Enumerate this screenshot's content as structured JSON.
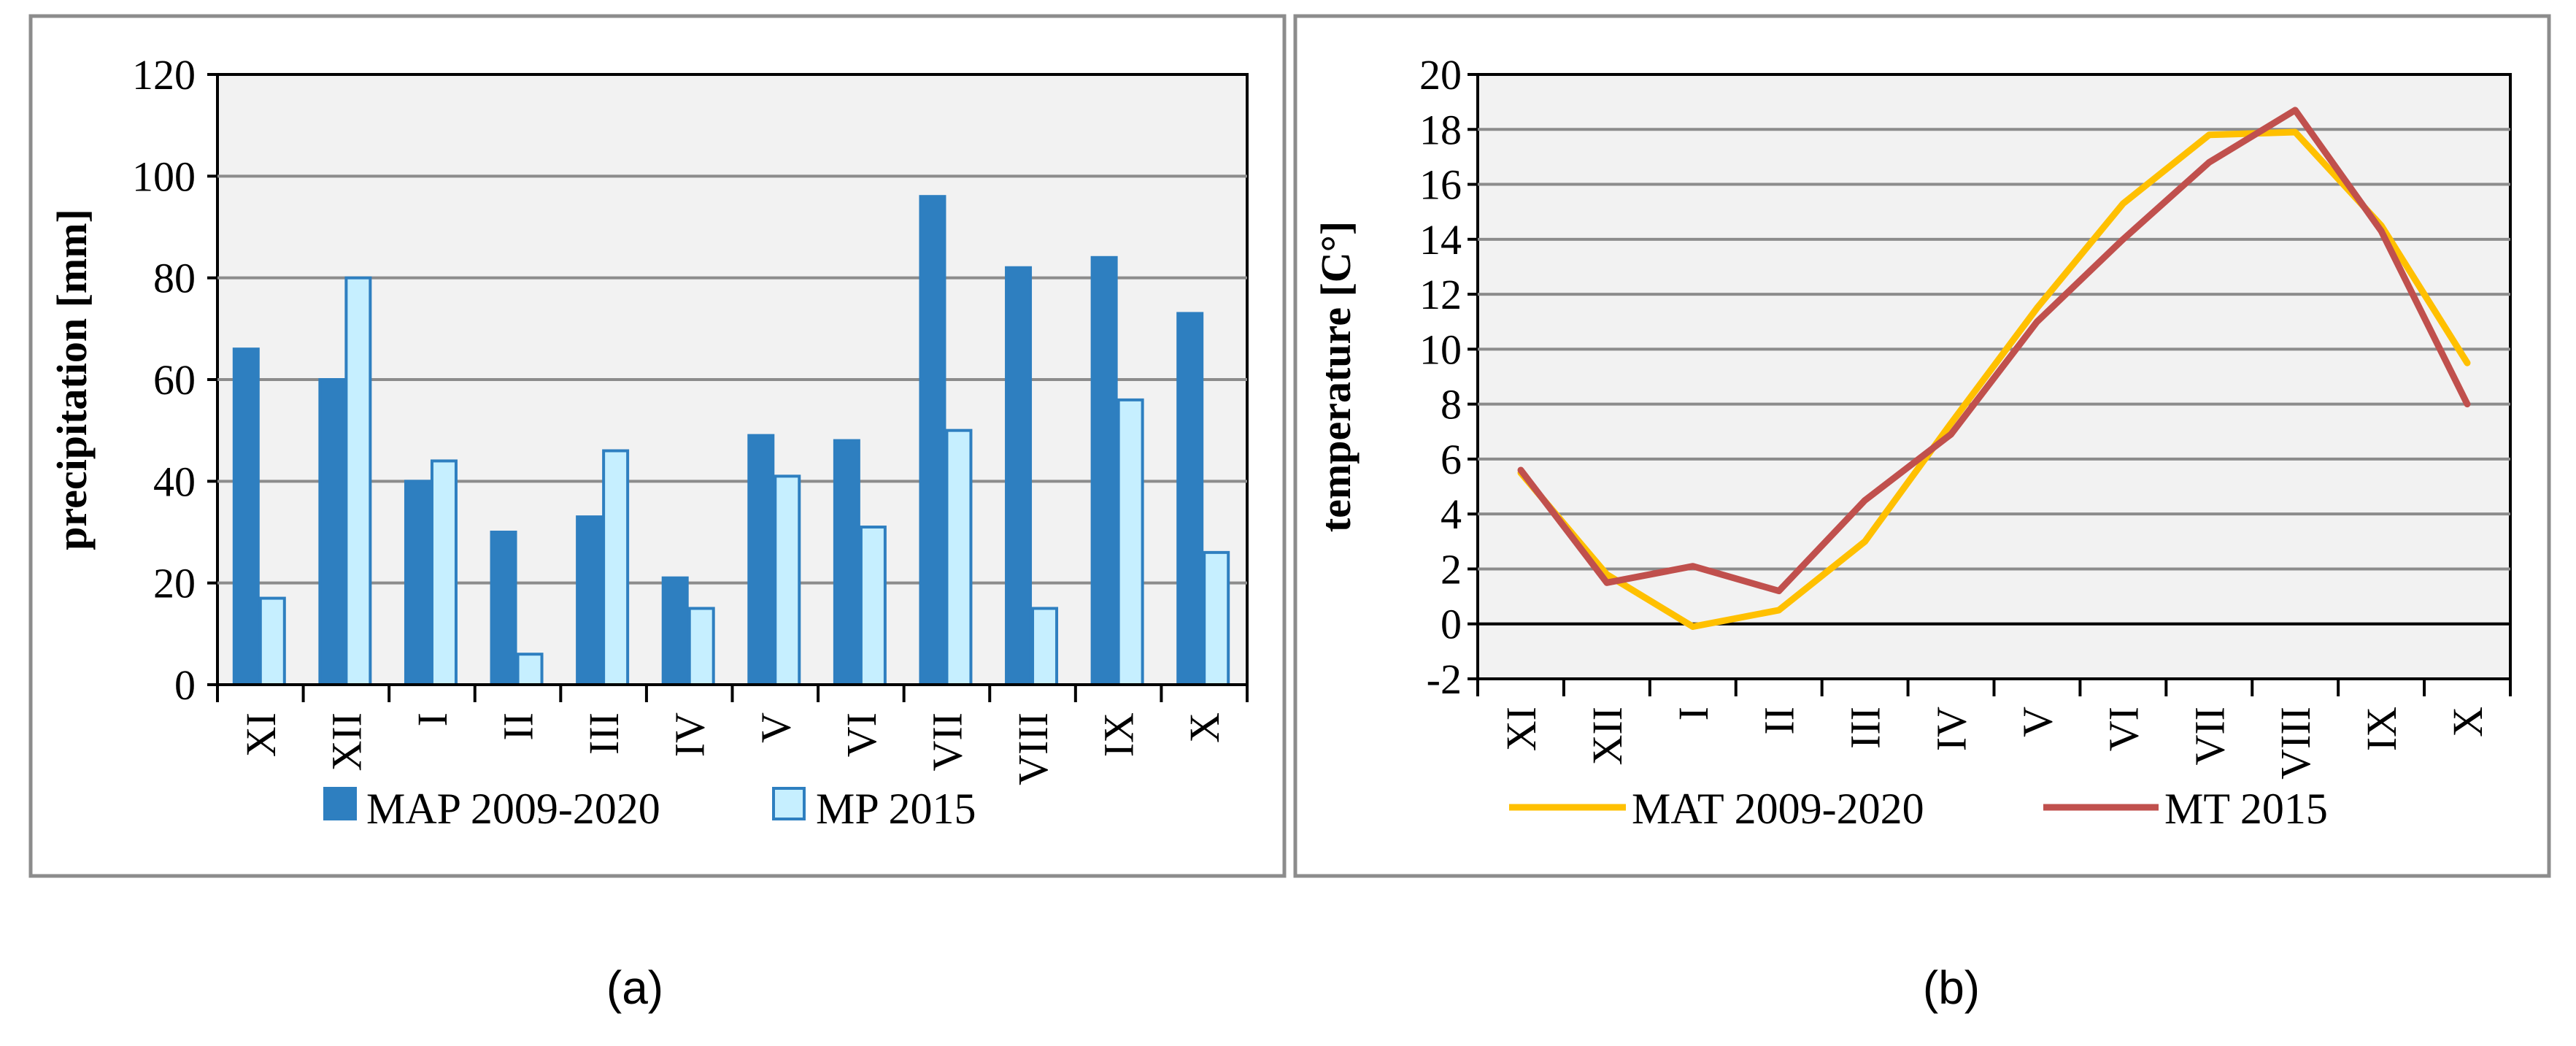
{
  "chart_data": [
    {
      "type": "bar",
      "caption": "(a)",
      "categories": [
        "XI",
        "XII",
        "I",
        "II",
        "III",
        "IV",
        "V",
        "VI",
        "VII",
        "VIII",
        "IX",
        "X"
      ],
      "ylabel": "precipitation [mm]",
      "ylim": [
        0,
        120
      ],
      "yticks": [
        0,
        20,
        40,
        60,
        80,
        100,
        120
      ],
      "grid": true,
      "legend_position": "bottom",
      "series": [
        {
          "name": "MAP 2009-2020",
          "color": "#2e7fc0",
          "values": [
            66,
            60,
            40,
            30,
            33,
            21,
            49,
            48,
            96,
            82,
            84,
            73
          ]
        },
        {
          "name": "MP 2015",
          "color": "#c6efff",
          "values": [
            17,
            80,
            44,
            6,
            46,
            15,
            41,
            31,
            50,
            15,
            56,
            26
          ]
        }
      ]
    },
    {
      "type": "line",
      "caption": "(b)",
      "categories": [
        "XI",
        "XII",
        "I",
        "II",
        "III",
        "IV",
        "V",
        "VI",
        "VII",
        "VIII",
        "IX",
        "X"
      ],
      "ylabel": "temperature [C°]",
      "ylim": [
        -2,
        20
      ],
      "yticks": [
        -2,
        0,
        2,
        4,
        6,
        8,
        10,
        12,
        14,
        16,
        18,
        20
      ],
      "grid": true,
      "legend_position": "bottom",
      "series": [
        {
          "name": "MAT 2009-2020",
          "color": "#ffc000",
          "values": [
            5.5,
            1.8,
            -0.1,
            0.5,
            3.0,
            7.3,
            11.5,
            15.3,
            17.8,
            17.9,
            14.5,
            9.5
          ]
        },
        {
          "name": "MT 2015",
          "color": "#c0504d",
          "values": [
            5.6,
            1.5,
            2.1,
            1.2,
            4.5,
            6.9,
            11.0,
            14.0,
            16.8,
            18.7,
            14.3,
            8.0
          ]
        }
      ]
    }
  ]
}
